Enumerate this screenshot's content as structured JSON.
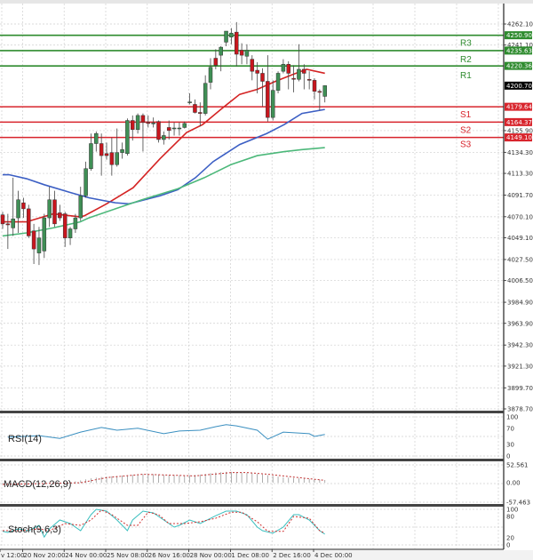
{
  "chart_data": {
    "type": "candlestick",
    "price_axis": {
      "range": [
        3878.7,
        4262.1
      ],
      "ticks": [
        "4262.10",
        "4241.10",
        "4155.90",
        "4134.30",
        "4113.30",
        "4091.70",
        "4070.10",
        "4049.10",
        "4027.50",
        "4006.50",
        "3984.90",
        "3963.90",
        "3942.30",
        "3921.30",
        "3899.70",
        "3878.70"
      ],
      "tick_values": [
        4262.1,
        4241.1,
        4155.9,
        4134.3,
        4113.3,
        4091.7,
        4070.1,
        4049.1,
        4027.5,
        4006.5,
        3984.9,
        3963.9,
        3942.3,
        3921.3,
        3899.7,
        3878.7
      ]
    },
    "time_axis": {
      "labels": [
        "v 12:00",
        "20 Nov 20:00",
        "24 Nov 00:00",
        "25 Nov 08:00",
        "26 Nov 16:00",
        "28 Nov 00:00",
        "1 Dec 08:00",
        "2 Dec 16:00",
        "4 Dec 00:00"
      ],
      "label_candle_index": [
        0,
        4,
        12,
        20,
        28,
        36,
        44,
        52,
        60
      ]
    },
    "grid": true,
    "candles_ohlc": [
      [
        4072,
        4075,
        4058,
        4063
      ],
      [
        4063,
        4073,
        4038,
        4062
      ],
      [
        4059,
        4109,
        4051,
        4068
      ],
      [
        4069,
        4096,
        4054,
        4087
      ],
      [
        4084,
        4089,
        4069,
        4078
      ],
      [
        4078,
        4082,
        4049,
        4051
      ],
      [
        4056,
        4063,
        4023,
        4038
      ],
      [
        4034,
        4060,
        4022,
        4049
      ],
      [
        4036,
        4073,
        4029,
        4069
      ],
      [
        4069,
        4100,
        4060,
        4087
      ],
      [
        4087,
        4096,
        4060,
        4063
      ],
      [
        4074,
        4082,
        4066,
        4069
      ],
      [
        4073,
        4075,
        4040,
        4049
      ],
      [
        4049,
        4060,
        4042,
        4058
      ],
      [
        4058,
        4073,
        4054,
        4069
      ],
      [
        4069,
        4100,
        4066,
        4091
      ],
      [
        4091,
        4125,
        4089,
        4118
      ],
      [
        4118,
        4153,
        4116,
        4143
      ],
      [
        4143,
        4155,
        4135,
        4153
      ],
      [
        4143,
        4153,
        4111,
        4131
      ],
      [
        4133,
        4144,
        4127,
        4131
      ],
      [
        4134,
        4149,
        4111,
        4122
      ],
      [
        4122,
        4158,
        4120,
        4134
      ],
      [
        4134,
        4144,
        4128,
        4137
      ],
      [
        4133,
        4168,
        4131,
        4166
      ],
      [
        4166,
        4171,
        4146,
        4157
      ],
      [
        4157,
        4173,
        4153,
        4171
      ],
      [
        4171,
        4173,
        4135,
        4164
      ],
      [
        4164,
        4171,
        4159,
        4163
      ],
      [
        4163,
        4169,
        4159,
        4163.5
      ],
      [
        4165,
        4166,
        4144,
        4147
      ],
      [
        4147,
        4155,
        4142,
        4151
      ],
      [
        4159,
        4166,
        4147,
        4156
      ],
      [
        4158,
        4164,
        4151,
        4158.5
      ],
      [
        4158,
        4164,
        4151,
        4158.5
      ],
      [
        4159,
        4165,
        4158,
        4163
      ],
      [
        4184,
        4193,
        4182,
        4184.5
      ],
      [
        4182,
        4187,
        4173,
        4174
      ],
      [
        4174,
        4184,
        4160,
        4173
      ],
      [
        4173,
        4211,
        4171,
        4203
      ],
      [
        4204,
        4228,
        4197,
        4219
      ],
      [
        4228,
        4237,
        4217,
        4221
      ],
      [
        4231,
        4240,
        4215,
        4239
      ],
      [
        4244,
        4255,
        4240,
        4255
      ],
      [
        4249,
        4258,
        4242,
        4253
      ],
      [
        4254,
        4264,
        4220,
        4232
      ],
      [
        4236,
        4243,
        4222,
        4231
      ],
      [
        4230,
        4242,
        4222,
        4236
      ],
      [
        4227,
        4231,
        4206,
        4215
      ],
      [
        4216,
        4224,
        4193,
        4213
      ],
      [
        4213,
        4218,
        4180,
        4205
      ],
      [
        4205,
        4231,
        4165,
        4169
      ],
      [
        4169,
        4206,
        4166,
        4196
      ],
      [
        4196,
        4215,
        4193,
        4213
      ],
      [
        4215,
        4227,
        4213,
        4222
      ],
      [
        4222,
        4225,
        4197,
        4213
      ],
      [
        4208,
        4221,
        4194,
        4207
      ],
      [
        4207,
        4242,
        4205,
        4217
      ],
      [
        4217,
        4222,
        4197,
        4213
      ],
      [
        4207,
        4215,
        4197,
        4206
      ],
      [
        4206,
        4208,
        4187,
        4195
      ],
      [
        4195,
        4197,
        4176,
        4194
      ],
      [
        4190,
        4201,
        4184,
        4200.7
      ]
    ],
    "moving_averages": [
      {
        "color": "#d42424",
        "points": [
          [
            0,
            4065
          ],
          [
            4.6,
            4065
          ],
          [
            9.7,
            4073
          ],
          [
            14.9,
            4070
          ],
          [
            15.7,
            4071
          ],
          [
            20,
            4083
          ],
          [
            25.1,
            4099
          ],
          [
            30.3,
            4128
          ],
          [
            35.4,
            4154
          ],
          [
            38.5,
            4162
          ],
          [
            42.2,
            4178
          ],
          [
            45.6,
            4192
          ],
          [
            49,
            4197
          ],
          [
            52.5,
            4205
          ],
          [
            55.9,
            4212
          ],
          [
            58.5,
            4217
          ],
          [
            62,
            4213
          ]
        ]
      },
      {
        "color": "#3c5fc4",
        "points": [
          [
            0,
            4112
          ],
          [
            1.2,
            4112
          ],
          [
            4.6,
            4108
          ],
          [
            8,
            4102
          ],
          [
            13.2,
            4094
          ],
          [
            16.6,
            4089
          ],
          [
            21.7,
            4084
          ],
          [
            24.3,
            4083
          ],
          [
            25.1,
            4084
          ],
          [
            30.3,
            4091
          ],
          [
            33.7,
            4097
          ],
          [
            37.1,
            4109
          ],
          [
            40.5,
            4125
          ],
          [
            45.6,
            4142
          ],
          [
            50.8,
            4153
          ],
          [
            54.2,
            4162
          ],
          [
            57.6,
            4173
          ],
          [
            62,
            4177
          ]
        ]
      },
      {
        "color": "#4cb87a",
        "points": [
          [
            0,
            4051
          ],
          [
            4.6,
            4054
          ],
          [
            9.7,
            4059
          ],
          [
            14.9,
            4065
          ],
          [
            16.6,
            4069
          ],
          [
            21.7,
            4078
          ],
          [
            26.8,
            4087
          ],
          [
            33.7,
            4098
          ],
          [
            38.8,
            4109
          ],
          [
            43.9,
            4122
          ],
          [
            49,
            4131
          ],
          [
            54.2,
            4135
          ],
          [
            57.6,
            4137
          ],
          [
            62,
            4139
          ]
        ]
      }
    ],
    "current_price": {
      "label": "4200.70",
      "value": 4200.7,
      "color": "#000000"
    },
    "levels": [
      {
        "name": "R3",
        "label": "4250.90",
        "value": 4250.9,
        "color": "#2e8b2e"
      },
      {
        "name": "R2",
        "label": "4235.63",
        "value": 4235.63,
        "color": "#2e8b2e"
      },
      {
        "name": "R1",
        "label": "4220.36",
        "value": 4220.36,
        "color": "#2e8b2e"
      },
      {
        "name": "S1",
        "label": "4179.64",
        "value": 4179.64,
        "color": "#d8242c"
      },
      {
        "name": "S2",
        "label": "4164.37",
        "value": 4164.37,
        "color": "#d8242c"
      },
      {
        "name": "S3",
        "label": "4149.10",
        "value": 4149.1,
        "color": "#d8242c"
      }
    ],
    "indicators": {
      "rsi": {
        "title": "RSI(14)",
        "ticks": [
          "100",
          "70",
          "30",
          "0"
        ],
        "tick_values": [
          100,
          70,
          30,
          0
        ],
        "color": "#3a8fc0",
        "points": [
          [
            1,
            48
          ],
          [
            7,
            52
          ],
          [
            11,
            45
          ],
          [
            15,
            61
          ],
          [
            19,
            73
          ],
          [
            22,
            66
          ],
          [
            26,
            71
          ],
          [
            31,
            57
          ],
          [
            34,
            64
          ],
          [
            38,
            66
          ],
          [
            41,
            75
          ],
          [
            43,
            80
          ],
          [
            45,
            77
          ],
          [
            49,
            66
          ],
          [
            51,
            43
          ],
          [
            54,
            61
          ],
          [
            59,
            57
          ],
          [
            60,
            50
          ],
          [
            62,
            55
          ]
        ]
      },
      "macd": {
        "title": "MACD(12,26,9)",
        "ticks": [
          "52.561",
          "0.00",
          "-57.463"
        ],
        "tick_values": [
          52.561,
          0,
          -57.463
        ],
        "histogram": [
          -3,
          -3,
          -2,
          -2,
          -1,
          -1,
          0,
          0,
          0,
          1,
          1,
          0,
          1,
          2,
          4,
          7,
          10,
          13,
          15,
          17,
          18,
          19,
          20,
          21,
          22,
          23,
          24,
          25,
          25,
          25,
          24,
          23,
          22,
          22,
          21,
          21,
          22,
          23,
          24,
          26,
          28,
          30,
          31,
          32,
          32,
          31,
          30,
          29,
          28,
          26,
          24,
          22,
          20,
          18,
          16,
          15,
          14,
          13,
          12,
          11,
          10,
          9,
          8
        ],
        "signal": [
          [
            0,
            -5
          ],
          [
            15,
            0
          ],
          [
            20,
            15
          ],
          [
            27,
            25
          ],
          [
            37,
            20
          ],
          [
            44,
            30
          ],
          [
            47,
            30
          ],
          [
            51,
            25
          ],
          [
            57,
            15
          ],
          [
            62,
            7
          ]
        ],
        "signal_color": "#c03030",
        "hist_color": "#999999"
      },
      "stoch": {
        "title": "Stoch(9,6,3)",
        "ticks": [
          "100",
          "80",
          "20",
          "0"
        ],
        "tick_values": [
          100,
          80,
          20,
          0
        ],
        "main_color": "#3bbfbf",
        "signal_color": "#d03030",
        "main": [
          [
            0,
            38
          ],
          [
            1,
            35
          ],
          [
            3,
            45
          ],
          [
            5,
            40
          ],
          [
            7,
            55
          ],
          [
            8,
            22
          ],
          [
            9,
            45
          ],
          [
            11,
            70
          ],
          [
            13,
            60
          ],
          [
            15,
            40
          ],
          [
            17,
            85
          ],
          [
            18,
            100
          ],
          [
            20,
            95
          ],
          [
            22,
            70
          ],
          [
            24,
            40
          ],
          [
            25,
            70
          ],
          [
            27,
            95
          ],
          [
            29,
            90
          ],
          [
            31,
            70
          ],
          [
            33,
            50
          ],
          [
            34,
            55
          ],
          [
            36,
            70
          ],
          [
            38,
            60
          ],
          [
            41,
            82
          ],
          [
            43,
            95
          ],
          [
            45,
            95
          ],
          [
            47,
            85
          ],
          [
            49,
            50
          ],
          [
            50,
            40
          ],
          [
            52,
            33
          ],
          [
            54,
            50
          ],
          [
            56,
            85
          ],
          [
            57,
            85
          ],
          [
            59,
            70
          ],
          [
            61,
            40
          ],
          [
            62,
            30
          ]
        ],
        "signal": [
          [
            0,
            40
          ],
          [
            3,
            40
          ],
          [
            7,
            45
          ],
          [
            9,
            40
          ],
          [
            12,
            60
          ],
          [
            15,
            55
          ],
          [
            17,
            70
          ],
          [
            19,
            98
          ],
          [
            21,
            85
          ],
          [
            24,
            55
          ],
          [
            26,
            55
          ],
          [
            28,
            92
          ],
          [
            30,
            85
          ],
          [
            32,
            60
          ],
          [
            35,
            60
          ],
          [
            38,
            65
          ],
          [
            41,
            75
          ],
          [
            44,
            92
          ],
          [
            46,
            92
          ],
          [
            49,
            65
          ],
          [
            51,
            38
          ],
          [
            54,
            38
          ],
          [
            56,
            80
          ],
          [
            59,
            75
          ],
          [
            61,
            40
          ],
          [
            62,
            33
          ]
        ]
      }
    },
    "colors": {
      "bull": "#3f8f55",
      "bear": "#c8161e",
      "grid": "#cfcfcf"
    }
  }
}
